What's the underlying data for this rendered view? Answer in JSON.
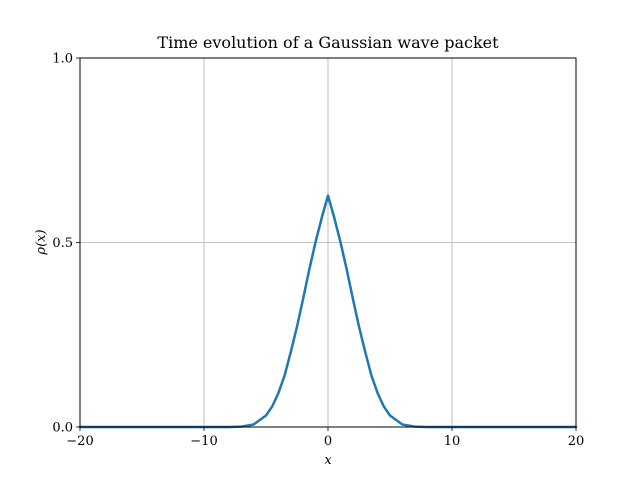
{
  "chart_data": {
    "type": "line",
    "title": "Time evolution of a Gaussian wave packet",
    "xlabel": "x",
    "ylabel": "ρ(x)",
    "xlim": [
      -20,
      20
    ],
    "ylim": [
      0.0,
      1.0
    ],
    "xticks": [
      -20,
      -10,
      0,
      10,
      20
    ],
    "xtick_labels": [
      "−20",
      "−10",
      "0",
      "10",
      "20"
    ],
    "yticks": [
      0.0,
      0.5,
      1.0
    ],
    "ytick_labels": [
      "0.0",
      "0.5",
      "1.0"
    ],
    "grid": true,
    "colors": {
      "line": "#1f77b4",
      "grid": "#b0b0b0",
      "axes": "#000000"
    },
    "series": [
      {
        "x": [
          -20,
          -10,
          -8,
          -7,
          -6,
          -5,
          -4.5,
          -4,
          -3.5,
          -3,
          -2.5,
          -2,
          -1.5,
          -1,
          -0.5,
          0,
          0.5,
          1,
          1.5,
          2,
          2.5,
          3,
          3.5,
          4,
          4.5,
          5,
          6,
          7,
          8,
          10,
          20
        ],
        "y": [
          0.0,
          0.0,
          0.0001,
          0.0011,
          0.0068,
          0.0311,
          0.0557,
          0.0919,
          0.1395,
          0.2033,
          0.272,
          0.3486,
          0.4282,
          0.5019,
          0.5677,
          0.627,
          0.5677,
          0.5019,
          0.4282,
          0.3486,
          0.272,
          0.2033,
          0.1395,
          0.0919,
          0.0557,
          0.0311,
          0.0068,
          0.0011,
          0.0001,
          0.0,
          0.0
        ]
      }
    ]
  }
}
